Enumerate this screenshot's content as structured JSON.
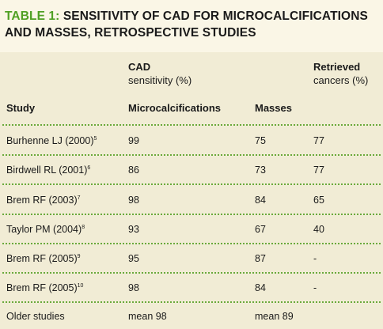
{
  "title": {
    "label": "TABLE 1:",
    "line1": "SENSITIVITY OF CAD FOR MICROCALCIFICATIONS",
    "line2": "AND MASSES, RETROSPECTIVE STUDIES"
  },
  "header": {
    "cad_line1": "CAD",
    "cad_line2": "sensitivity (%)",
    "retrieved_line1": "Retrieved",
    "retrieved_line2": "cancers (%)",
    "col_study": "Study",
    "col_micro": "Microcalcifications",
    "col_masses": "Masses"
  },
  "rows": [
    {
      "study": "Burhenne LJ (2000)",
      "ref": "5",
      "micro": "99",
      "masses": "75",
      "retrieved": "77"
    },
    {
      "study": "Birdwell RL (2001)",
      "ref": "6",
      "micro": "86",
      "masses": "73",
      "retrieved": "77"
    },
    {
      "study": "Brem RF (2003)",
      "ref": "7",
      "micro": "98",
      "masses": "84",
      "retrieved": "65"
    },
    {
      "study": "Taylor PM (2004)",
      "ref": "8",
      "micro": "93",
      "masses": "67",
      "retrieved": "40"
    },
    {
      "study": "Brem RF (2005)",
      "ref": "9",
      "micro": "95",
      "masses": "87",
      "retrieved": "-"
    },
    {
      "study": "Brem RF (2005)",
      "ref": "10",
      "micro": "98",
      "masses": "84",
      "retrieved": "-"
    },
    {
      "study": "Older studies",
      "ref": "",
      "micro": "mean 98",
      "masses": "mean 89",
      "retrieved": ""
    }
  ],
  "colors": {
    "label_green": "#4fa024",
    "dotted_rule": "#6aaa3c",
    "background": "#faf6e6",
    "band": "#f1ecd5"
  }
}
